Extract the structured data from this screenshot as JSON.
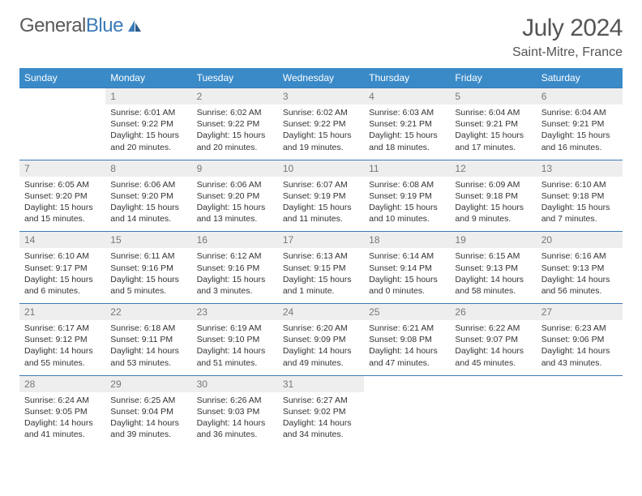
{
  "logo": {
    "text_general": "General",
    "text_blue": "Blue"
  },
  "title": "July 2024",
  "location": "Saint-Mitre, France",
  "colors": {
    "header_bg": "#3a8ac8",
    "border": "#3a7ab8",
    "daynum_bg": "#eeeeee",
    "logo_blue": "#3a7ab8",
    "text_gray": "#555"
  },
  "weekdays": [
    "Sunday",
    "Monday",
    "Tuesday",
    "Wednesday",
    "Thursday",
    "Friday",
    "Saturday"
  ],
  "weeks": [
    [
      null,
      {
        "n": "1",
        "sr": "Sunrise: 6:01 AM",
        "ss": "Sunset: 9:22 PM",
        "d1": "Daylight: 15 hours",
        "d2": "and 20 minutes."
      },
      {
        "n": "2",
        "sr": "Sunrise: 6:02 AM",
        "ss": "Sunset: 9:22 PM",
        "d1": "Daylight: 15 hours",
        "d2": "and 20 minutes."
      },
      {
        "n": "3",
        "sr": "Sunrise: 6:02 AM",
        "ss": "Sunset: 9:22 PM",
        "d1": "Daylight: 15 hours",
        "d2": "and 19 minutes."
      },
      {
        "n": "4",
        "sr": "Sunrise: 6:03 AM",
        "ss": "Sunset: 9:21 PM",
        "d1": "Daylight: 15 hours",
        "d2": "and 18 minutes."
      },
      {
        "n": "5",
        "sr": "Sunrise: 6:04 AM",
        "ss": "Sunset: 9:21 PM",
        "d1": "Daylight: 15 hours",
        "d2": "and 17 minutes."
      },
      {
        "n": "6",
        "sr": "Sunrise: 6:04 AM",
        "ss": "Sunset: 9:21 PM",
        "d1": "Daylight: 15 hours",
        "d2": "and 16 minutes."
      }
    ],
    [
      {
        "n": "7",
        "sr": "Sunrise: 6:05 AM",
        "ss": "Sunset: 9:20 PM",
        "d1": "Daylight: 15 hours",
        "d2": "and 15 minutes."
      },
      {
        "n": "8",
        "sr": "Sunrise: 6:06 AM",
        "ss": "Sunset: 9:20 PM",
        "d1": "Daylight: 15 hours",
        "d2": "and 14 minutes."
      },
      {
        "n": "9",
        "sr": "Sunrise: 6:06 AM",
        "ss": "Sunset: 9:20 PM",
        "d1": "Daylight: 15 hours",
        "d2": "and 13 minutes."
      },
      {
        "n": "10",
        "sr": "Sunrise: 6:07 AM",
        "ss": "Sunset: 9:19 PM",
        "d1": "Daylight: 15 hours",
        "d2": "and 11 minutes."
      },
      {
        "n": "11",
        "sr": "Sunrise: 6:08 AM",
        "ss": "Sunset: 9:19 PM",
        "d1": "Daylight: 15 hours",
        "d2": "and 10 minutes."
      },
      {
        "n": "12",
        "sr": "Sunrise: 6:09 AM",
        "ss": "Sunset: 9:18 PM",
        "d1": "Daylight: 15 hours",
        "d2": "and 9 minutes."
      },
      {
        "n": "13",
        "sr": "Sunrise: 6:10 AM",
        "ss": "Sunset: 9:18 PM",
        "d1": "Daylight: 15 hours",
        "d2": "and 7 minutes."
      }
    ],
    [
      {
        "n": "14",
        "sr": "Sunrise: 6:10 AM",
        "ss": "Sunset: 9:17 PM",
        "d1": "Daylight: 15 hours",
        "d2": "and 6 minutes."
      },
      {
        "n": "15",
        "sr": "Sunrise: 6:11 AM",
        "ss": "Sunset: 9:16 PM",
        "d1": "Daylight: 15 hours",
        "d2": "and 5 minutes."
      },
      {
        "n": "16",
        "sr": "Sunrise: 6:12 AM",
        "ss": "Sunset: 9:16 PM",
        "d1": "Daylight: 15 hours",
        "d2": "and 3 minutes."
      },
      {
        "n": "17",
        "sr": "Sunrise: 6:13 AM",
        "ss": "Sunset: 9:15 PM",
        "d1": "Daylight: 15 hours",
        "d2": "and 1 minute."
      },
      {
        "n": "18",
        "sr": "Sunrise: 6:14 AM",
        "ss": "Sunset: 9:14 PM",
        "d1": "Daylight: 15 hours",
        "d2": "and 0 minutes."
      },
      {
        "n": "19",
        "sr": "Sunrise: 6:15 AM",
        "ss": "Sunset: 9:13 PM",
        "d1": "Daylight: 14 hours",
        "d2": "and 58 minutes."
      },
      {
        "n": "20",
        "sr": "Sunrise: 6:16 AM",
        "ss": "Sunset: 9:13 PM",
        "d1": "Daylight: 14 hours",
        "d2": "and 56 minutes."
      }
    ],
    [
      {
        "n": "21",
        "sr": "Sunrise: 6:17 AM",
        "ss": "Sunset: 9:12 PM",
        "d1": "Daylight: 14 hours",
        "d2": "and 55 minutes."
      },
      {
        "n": "22",
        "sr": "Sunrise: 6:18 AM",
        "ss": "Sunset: 9:11 PM",
        "d1": "Daylight: 14 hours",
        "d2": "and 53 minutes."
      },
      {
        "n": "23",
        "sr": "Sunrise: 6:19 AM",
        "ss": "Sunset: 9:10 PM",
        "d1": "Daylight: 14 hours",
        "d2": "and 51 minutes."
      },
      {
        "n": "24",
        "sr": "Sunrise: 6:20 AM",
        "ss": "Sunset: 9:09 PM",
        "d1": "Daylight: 14 hours",
        "d2": "and 49 minutes."
      },
      {
        "n": "25",
        "sr": "Sunrise: 6:21 AM",
        "ss": "Sunset: 9:08 PM",
        "d1": "Daylight: 14 hours",
        "d2": "and 47 minutes."
      },
      {
        "n": "26",
        "sr": "Sunrise: 6:22 AM",
        "ss": "Sunset: 9:07 PM",
        "d1": "Daylight: 14 hours",
        "d2": "and 45 minutes."
      },
      {
        "n": "27",
        "sr": "Sunrise: 6:23 AM",
        "ss": "Sunset: 9:06 PM",
        "d1": "Daylight: 14 hours",
        "d2": "and 43 minutes."
      }
    ],
    [
      {
        "n": "28",
        "sr": "Sunrise: 6:24 AM",
        "ss": "Sunset: 9:05 PM",
        "d1": "Daylight: 14 hours",
        "d2": "and 41 minutes."
      },
      {
        "n": "29",
        "sr": "Sunrise: 6:25 AM",
        "ss": "Sunset: 9:04 PM",
        "d1": "Daylight: 14 hours",
        "d2": "and 39 minutes."
      },
      {
        "n": "30",
        "sr": "Sunrise: 6:26 AM",
        "ss": "Sunset: 9:03 PM",
        "d1": "Daylight: 14 hours",
        "d2": "and 36 minutes."
      },
      {
        "n": "31",
        "sr": "Sunrise: 6:27 AM",
        "ss": "Sunset: 9:02 PM",
        "d1": "Daylight: 14 hours",
        "d2": "and 34 minutes."
      },
      null,
      null,
      null
    ]
  ]
}
